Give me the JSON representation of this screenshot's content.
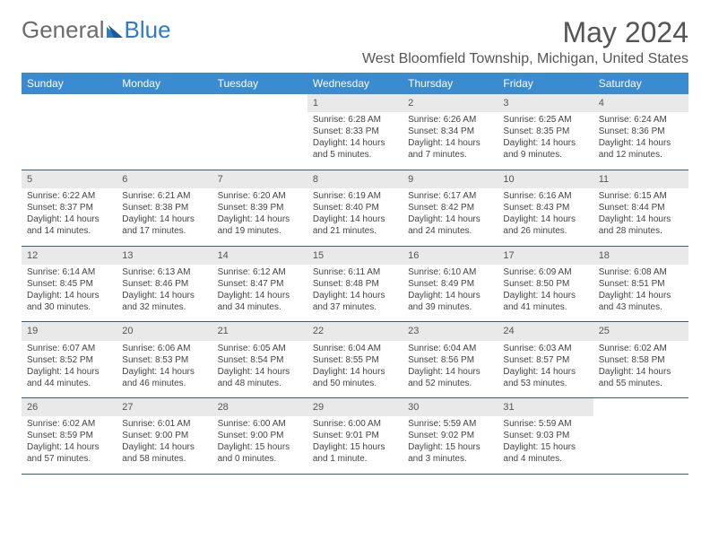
{
  "brand": {
    "part1": "General",
    "part2": "Blue"
  },
  "title": "May 2024",
  "location": "West Bloomfield Township, Michigan, United States",
  "colors": {
    "header_bg": "#3b8bd1",
    "header_text": "#ffffff",
    "daynum_bg": "#e9e9e9",
    "row_border": "#3b5a7a",
    "brand_grey": "#6b6b6b",
    "brand_blue": "#2f7bc4"
  },
  "weekdays": [
    "Sunday",
    "Monday",
    "Tuesday",
    "Wednesday",
    "Thursday",
    "Friday",
    "Saturday"
  ],
  "weeks": [
    [
      null,
      null,
      null,
      {
        "n": "1",
        "sr": "6:28 AM",
        "ss": "8:33 PM",
        "dl": "14 hours and 5 minutes."
      },
      {
        "n": "2",
        "sr": "6:26 AM",
        "ss": "8:34 PM",
        "dl": "14 hours and 7 minutes."
      },
      {
        "n": "3",
        "sr": "6:25 AM",
        "ss": "8:35 PM",
        "dl": "14 hours and 9 minutes."
      },
      {
        "n": "4",
        "sr": "6:24 AM",
        "ss": "8:36 PM",
        "dl": "14 hours and 12 minutes."
      }
    ],
    [
      {
        "n": "5",
        "sr": "6:22 AM",
        "ss": "8:37 PM",
        "dl": "14 hours and 14 minutes."
      },
      {
        "n": "6",
        "sr": "6:21 AM",
        "ss": "8:38 PM",
        "dl": "14 hours and 17 minutes."
      },
      {
        "n": "7",
        "sr": "6:20 AM",
        "ss": "8:39 PM",
        "dl": "14 hours and 19 minutes."
      },
      {
        "n": "8",
        "sr": "6:19 AM",
        "ss": "8:40 PM",
        "dl": "14 hours and 21 minutes."
      },
      {
        "n": "9",
        "sr": "6:17 AM",
        "ss": "8:42 PM",
        "dl": "14 hours and 24 minutes."
      },
      {
        "n": "10",
        "sr": "6:16 AM",
        "ss": "8:43 PM",
        "dl": "14 hours and 26 minutes."
      },
      {
        "n": "11",
        "sr": "6:15 AM",
        "ss": "8:44 PM",
        "dl": "14 hours and 28 minutes."
      }
    ],
    [
      {
        "n": "12",
        "sr": "6:14 AM",
        "ss": "8:45 PM",
        "dl": "14 hours and 30 minutes."
      },
      {
        "n": "13",
        "sr": "6:13 AM",
        "ss": "8:46 PM",
        "dl": "14 hours and 32 minutes."
      },
      {
        "n": "14",
        "sr": "6:12 AM",
        "ss": "8:47 PM",
        "dl": "14 hours and 34 minutes."
      },
      {
        "n": "15",
        "sr": "6:11 AM",
        "ss": "8:48 PM",
        "dl": "14 hours and 37 minutes."
      },
      {
        "n": "16",
        "sr": "6:10 AM",
        "ss": "8:49 PM",
        "dl": "14 hours and 39 minutes."
      },
      {
        "n": "17",
        "sr": "6:09 AM",
        "ss": "8:50 PM",
        "dl": "14 hours and 41 minutes."
      },
      {
        "n": "18",
        "sr": "6:08 AM",
        "ss": "8:51 PM",
        "dl": "14 hours and 43 minutes."
      }
    ],
    [
      {
        "n": "19",
        "sr": "6:07 AM",
        "ss": "8:52 PM",
        "dl": "14 hours and 44 minutes."
      },
      {
        "n": "20",
        "sr": "6:06 AM",
        "ss": "8:53 PM",
        "dl": "14 hours and 46 minutes."
      },
      {
        "n": "21",
        "sr": "6:05 AM",
        "ss": "8:54 PM",
        "dl": "14 hours and 48 minutes."
      },
      {
        "n": "22",
        "sr": "6:04 AM",
        "ss": "8:55 PM",
        "dl": "14 hours and 50 minutes."
      },
      {
        "n": "23",
        "sr": "6:04 AM",
        "ss": "8:56 PM",
        "dl": "14 hours and 52 minutes."
      },
      {
        "n": "24",
        "sr": "6:03 AM",
        "ss": "8:57 PM",
        "dl": "14 hours and 53 minutes."
      },
      {
        "n": "25",
        "sr": "6:02 AM",
        "ss": "8:58 PM",
        "dl": "14 hours and 55 minutes."
      }
    ],
    [
      {
        "n": "26",
        "sr": "6:02 AM",
        "ss": "8:59 PM",
        "dl": "14 hours and 57 minutes."
      },
      {
        "n": "27",
        "sr": "6:01 AM",
        "ss": "9:00 PM",
        "dl": "14 hours and 58 minutes."
      },
      {
        "n": "28",
        "sr": "6:00 AM",
        "ss": "9:00 PM",
        "dl": "15 hours and 0 minutes."
      },
      {
        "n": "29",
        "sr": "6:00 AM",
        "ss": "9:01 PM",
        "dl": "15 hours and 1 minute."
      },
      {
        "n": "30",
        "sr": "5:59 AM",
        "ss": "9:02 PM",
        "dl": "15 hours and 3 minutes."
      },
      {
        "n": "31",
        "sr": "5:59 AM",
        "ss": "9:03 PM",
        "dl": "15 hours and 4 minutes."
      },
      null
    ]
  ]
}
